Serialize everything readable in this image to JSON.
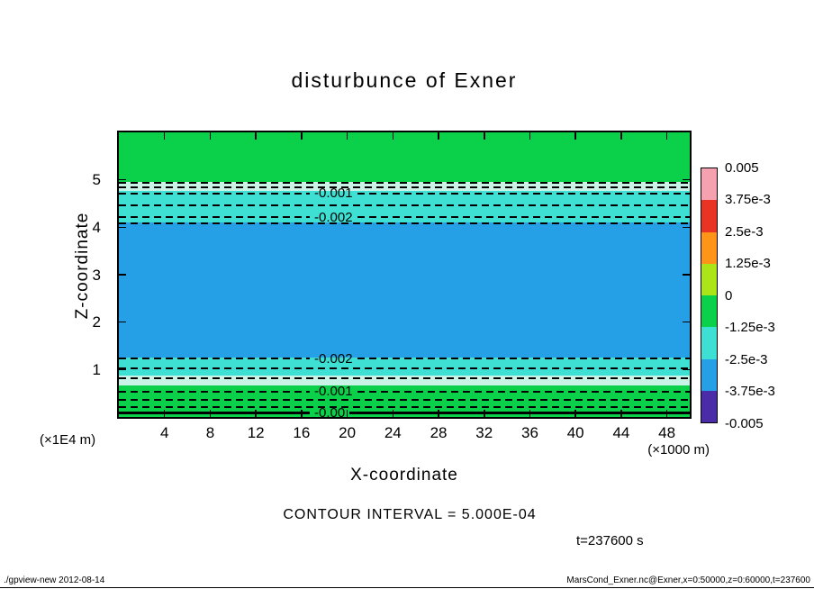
{
  "title": "disturbunce of Exner",
  "axes": {
    "x": {
      "label": "X-coordinate",
      "unit": "(×1000 m)",
      "range": [
        0,
        50
      ],
      "ticks": [
        4,
        8,
        12,
        16,
        20,
        24,
        28,
        32,
        36,
        40,
        44,
        48
      ]
    },
    "y": {
      "label": "Z-coordinate",
      "unit": "(×1E4 m)",
      "range": [
        0,
        6
      ],
      "ticks": [
        1,
        2,
        3,
        4,
        5
      ]
    }
  },
  "colorbar": {
    "labels": [
      "0.005",
      "3.75e-3",
      "2.5e-3",
      "1.25e-3",
      "0",
      "-1.25e-3",
      "-2.5e-3",
      "-3.75e-3",
      "-0.005"
    ],
    "colors": [
      "#f5a1b0",
      "#e93425",
      "#ff9518",
      "#abe417",
      "#0bd14a",
      "#3fe0d4",
      "#25a0e6",
      "#4b2ca8"
    ]
  },
  "notes": {
    "contour_interval": "CONTOUR INTERVAL = 5.000E-04",
    "time": "t=237600 s"
  },
  "footer": {
    "left": "./gpview-new  2012-08-14",
    "right": "MarsCond_Exner.nc@Exner,x=0:50000,z=0:60000,t=237600"
  },
  "chart_data": {
    "type": "heatmap",
    "title": "disturbunce of Exner",
    "xlabel": "X-coordinate (×1000 m)",
    "ylabel": "Z-coordinate (×1E4 m)",
    "xlim": [
      0,
      50000
    ],
    "ylim": [
      0,
      60000
    ],
    "contour_interval": 0.0005,
    "legend_position": "right colorbar",
    "grid": false,
    "colorbar_levels": [
      0.005,
      0.00375,
      0.0025,
      0.00125,
      0,
      -0.00125,
      -0.0025,
      -0.00375,
      -0.005
    ],
    "description": "Horizontally uniform Exner-function disturbance; value ≈ 0 at bottom and top boundaries, minimum ≈ -3e-3 at mid-levels (z ≈ 15000–40000 m).",
    "bands": [
      {
        "z_from": 49560,
        "z_to": 60000,
        "value": "0 to -1e-3",
        "color": "#0bd14a"
      },
      {
        "z_from": 47660,
        "z_to": 49560,
        "value": "≈ -1e-3",
        "color": "#c9f3e6"
      },
      {
        "z_from": 41010,
        "z_to": 47660,
        "value": "-1e-3 to -2e-3",
        "color": "#3fe0d4"
      },
      {
        "z_from": 12530,
        "z_to": 41010,
        "value": "-2.5e-3 to -3e-3",
        "color": "#25a0e6"
      },
      {
        "z_from": 8730,
        "z_to": 12530,
        "value": "-2e-3 to -1e-3",
        "color": "#3fe0d4"
      },
      {
        "z_from": 6640,
        "z_to": 8730,
        "value": "≈ -1e-3",
        "color": "#c9f3e6"
      },
      {
        "z_from": 0,
        "z_to": 6640,
        "value": "-1e-3 to 0",
        "color": "#0bd14a"
      }
    ],
    "contours": [
      {
        "z": 49370,
        "value": -0.0005,
        "label": "",
        "style": "dashed"
      },
      {
        "z": 48420,
        "value": -0.001,
        "label": "",
        "style": "dashed"
      },
      {
        "z": 47090,
        "value": -0.001,
        "label": "-0.001",
        "style": "dashed"
      },
      {
        "z": 44620,
        "value": -0.0015,
        "label": "",
        "style": "dashed"
      },
      {
        "z": 42150,
        "value": -0.002,
        "label": "-0.002",
        "style": "dashed"
      },
      {
        "z": 40820,
        "value": -0.0025,
        "label": "",
        "style": "dashed"
      },
      {
        "z": 12340,
        "value": -0.002,
        "label": "-0.002",
        "style": "dashed"
      },
      {
        "z": 10250,
        "value": -0.0015,
        "label": "",
        "style": "dashed"
      },
      {
        "z": 8160,
        "value": -0.001,
        "label": "",
        "style": "dashed"
      },
      {
        "z": 5320,
        "value": -0.001,
        "label": "-0.001",
        "style": "dashed"
      },
      {
        "z": 3610,
        "value": -0.0005,
        "label": "",
        "style": "dashed"
      },
      {
        "z": 2090,
        "value": -0.0005,
        "label": "",
        "style": "dashed"
      },
      {
        "z": 760,
        "value": 0.0,
        "label": "-0.00",
        "style": "solid"
      }
    ]
  }
}
